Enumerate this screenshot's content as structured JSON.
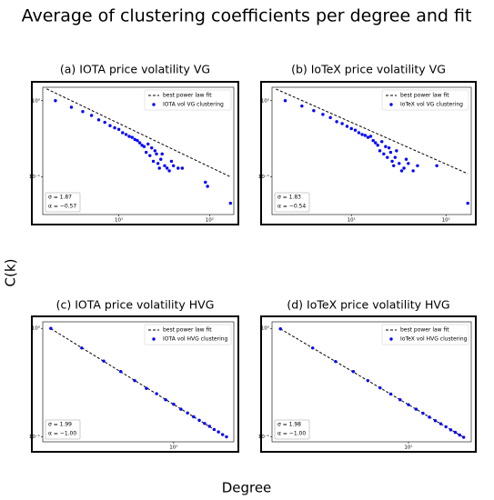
{
  "figure_title": "Average of clustering coefficients per degree and fit",
  "x_label": "Degree",
  "y_label": "C(k)",
  "chart_data": [
    {
      "type": "scatter",
      "title": "(a) IOTA price volatility VG",
      "log_scale": true,
      "legend": "upper right",
      "annotation": [
        "σ = 1.87",
        "α = −0.57"
      ],
      "xlim": [
        1.45,
        185
      ],
      "ylim": [
        0.032,
        1.5
      ],
      "xticks": [
        {
          "value": 10,
          "label": "10¹"
        },
        {
          "value": 100,
          "label": "10²"
        }
      ],
      "yticks": [
        {
          "value": 0.1,
          "label": "10⁻¹"
        },
        {
          "value": 1,
          "label": "10⁰"
        }
      ],
      "series": [
        {
          "name": "best power law fit",
          "color": "#000000",
          "x": [
            1.6,
            170
          ],
          "values": [
            1.43,
            0.1
          ]
        },
        {
          "name": "IOTA vol VG clustering",
          "color": "#0000ff",
          "x": [
            2,
            3,
            4,
            5,
            6,
            7,
            8,
            9,
            10,
            11,
            12,
            13,
            14,
            15,
            16,
            17,
            18,
            19,
            20,
            21,
            22,
            23,
            24,
            25,
            26,
            27,
            28,
            29,
            30,
            32,
            34,
            36,
            38,
            40,
            45,
            50,
            90,
            95,
            170
          ],
          "values": [
            1.0,
            0.82,
            0.72,
            0.64,
            0.56,
            0.52,
            0.47,
            0.44,
            0.42,
            0.38,
            0.36,
            0.34,
            0.33,
            0.31,
            0.3,
            0.28,
            0.26,
            0.25,
            0.21,
            0.27,
            0.19,
            0.24,
            0.16,
            0.22,
            0.2,
            0.15,
            0.13,
            0.17,
            0.2,
            0.14,
            0.13,
            0.12,
            0.16,
            0.14,
            0.13,
            0.13,
            0.085,
            0.075,
            0.045
          ]
        }
      ]
    },
    {
      "type": "scatter",
      "title": "(b) IoTeX price volatility VG",
      "log_scale": true,
      "legend": "upper right",
      "annotation": [
        "σ = 1.83",
        "α = −0.54"
      ],
      "xlim": [
        1.45,
        185
      ],
      "ylim": [
        0.032,
        1.5
      ],
      "xticks": [
        {
          "value": 10,
          "label": "10¹"
        },
        {
          "value": 100,
          "label": "10²"
        }
      ],
      "yticks": [
        {
          "value": 0.1,
          "label": "10⁻¹"
        },
        {
          "value": 1,
          "label": "10⁰"
        }
      ],
      "series": [
        {
          "name": "best power law fit",
          "color": "#000000",
          "x": [
            1.6,
            170
          ],
          "values": [
            1.42,
            0.11
          ]
        },
        {
          "name": "IoTeX vol VG clustering",
          "color": "#0000ff",
          "x": [
            2,
            3,
            4,
            5,
            6,
            7,
            8,
            9,
            10,
            11,
            12,
            13,
            14,
            15,
            16,
            17,
            18,
            19,
            20,
            21,
            22,
            23,
            24,
            25,
            26,
            27,
            28,
            29,
            30,
            32,
            34,
            36,
            38,
            40,
            45,
            50,
            80,
            170
          ],
          "values": [
            1.0,
            0.85,
            0.74,
            0.66,
            0.6,
            0.53,
            0.5,
            0.46,
            0.43,
            0.41,
            0.38,
            0.36,
            0.35,
            0.33,
            0.34,
            0.3,
            0.28,
            0.26,
            0.22,
            0.29,
            0.2,
            0.25,
            0.18,
            0.24,
            0.21,
            0.16,
            0.14,
            0.18,
            0.22,
            0.15,
            0.12,
            0.13,
            0.17,
            0.15,
            0.12,
            0.14,
            0.14,
            0.045
          ]
        }
      ]
    },
    {
      "type": "scatter",
      "title": "(c) IOTA price volatility HVG",
      "log_scale": true,
      "legend": "upper right",
      "annotation": [
        "σ = 1.99",
        "α = −1.00"
      ],
      "xlim": [
        1.8,
        22
      ],
      "ylim": [
        0.09,
        1.15
      ],
      "xticks": [
        {
          "value": 10,
          "label": "10¹"
        }
      ],
      "yticks": [
        {
          "value": 0.1,
          "label": "10⁻¹"
        },
        {
          "value": 1,
          "label": "10⁰"
        }
      ],
      "series": [
        {
          "name": "best power law fit",
          "color": "#000000",
          "x": [
            2,
            20
          ],
          "values": [
            0.995,
            0.0995
          ]
        },
        {
          "name": "IOTA vol HVG clustering",
          "color": "#0000ff",
          "x": [
            2,
            3,
            4,
            5,
            6,
            7,
            8,
            9,
            10,
            11,
            12,
            13,
            14,
            15,
            16,
            17,
            18,
            19,
            20
          ],
          "values": [
            1.0,
            0.66,
            0.5,
            0.4,
            0.33,
            0.28,
            0.25,
            0.22,
            0.2,
            0.18,
            0.166,
            0.153,
            0.142,
            0.133,
            0.125,
            0.117,
            0.111,
            0.105,
            0.1
          ]
        }
      ]
    },
    {
      "type": "scatter",
      "title": "(d) IoTeX price volatility HVG",
      "log_scale": true,
      "legend": "upper right",
      "annotation": [
        "σ = 1.98",
        "α = −1.00"
      ],
      "xlim": [
        1.8,
        22
      ],
      "ylim": [
        0.09,
        1.15
      ],
      "xticks": [
        {
          "value": 10,
          "label": "10¹"
        }
      ],
      "yticks": [
        {
          "value": 0.1,
          "label": "10⁻¹"
        },
        {
          "value": 1,
          "label": "10⁰"
        }
      ],
      "series": [
        {
          "name": "best power law fit",
          "color": "#000000",
          "x": [
            2,
            20
          ],
          "values": [
            0.99,
            0.099
          ]
        },
        {
          "name": "IoTeX vol HVG clustering",
          "color": "#0000ff",
          "x": [
            2,
            3,
            4,
            5,
            6,
            7,
            8,
            9,
            10,
            11,
            12,
            13,
            14,
            15,
            16,
            17,
            18,
            19,
            20
          ],
          "values": [
            0.99,
            0.66,
            0.495,
            0.4,
            0.33,
            0.283,
            0.248,
            0.22,
            0.198,
            0.18,
            0.165,
            0.152,
            0.141,
            0.132,
            0.124,
            0.116,
            0.11,
            0.104,
            0.099
          ]
        }
      ]
    }
  ]
}
